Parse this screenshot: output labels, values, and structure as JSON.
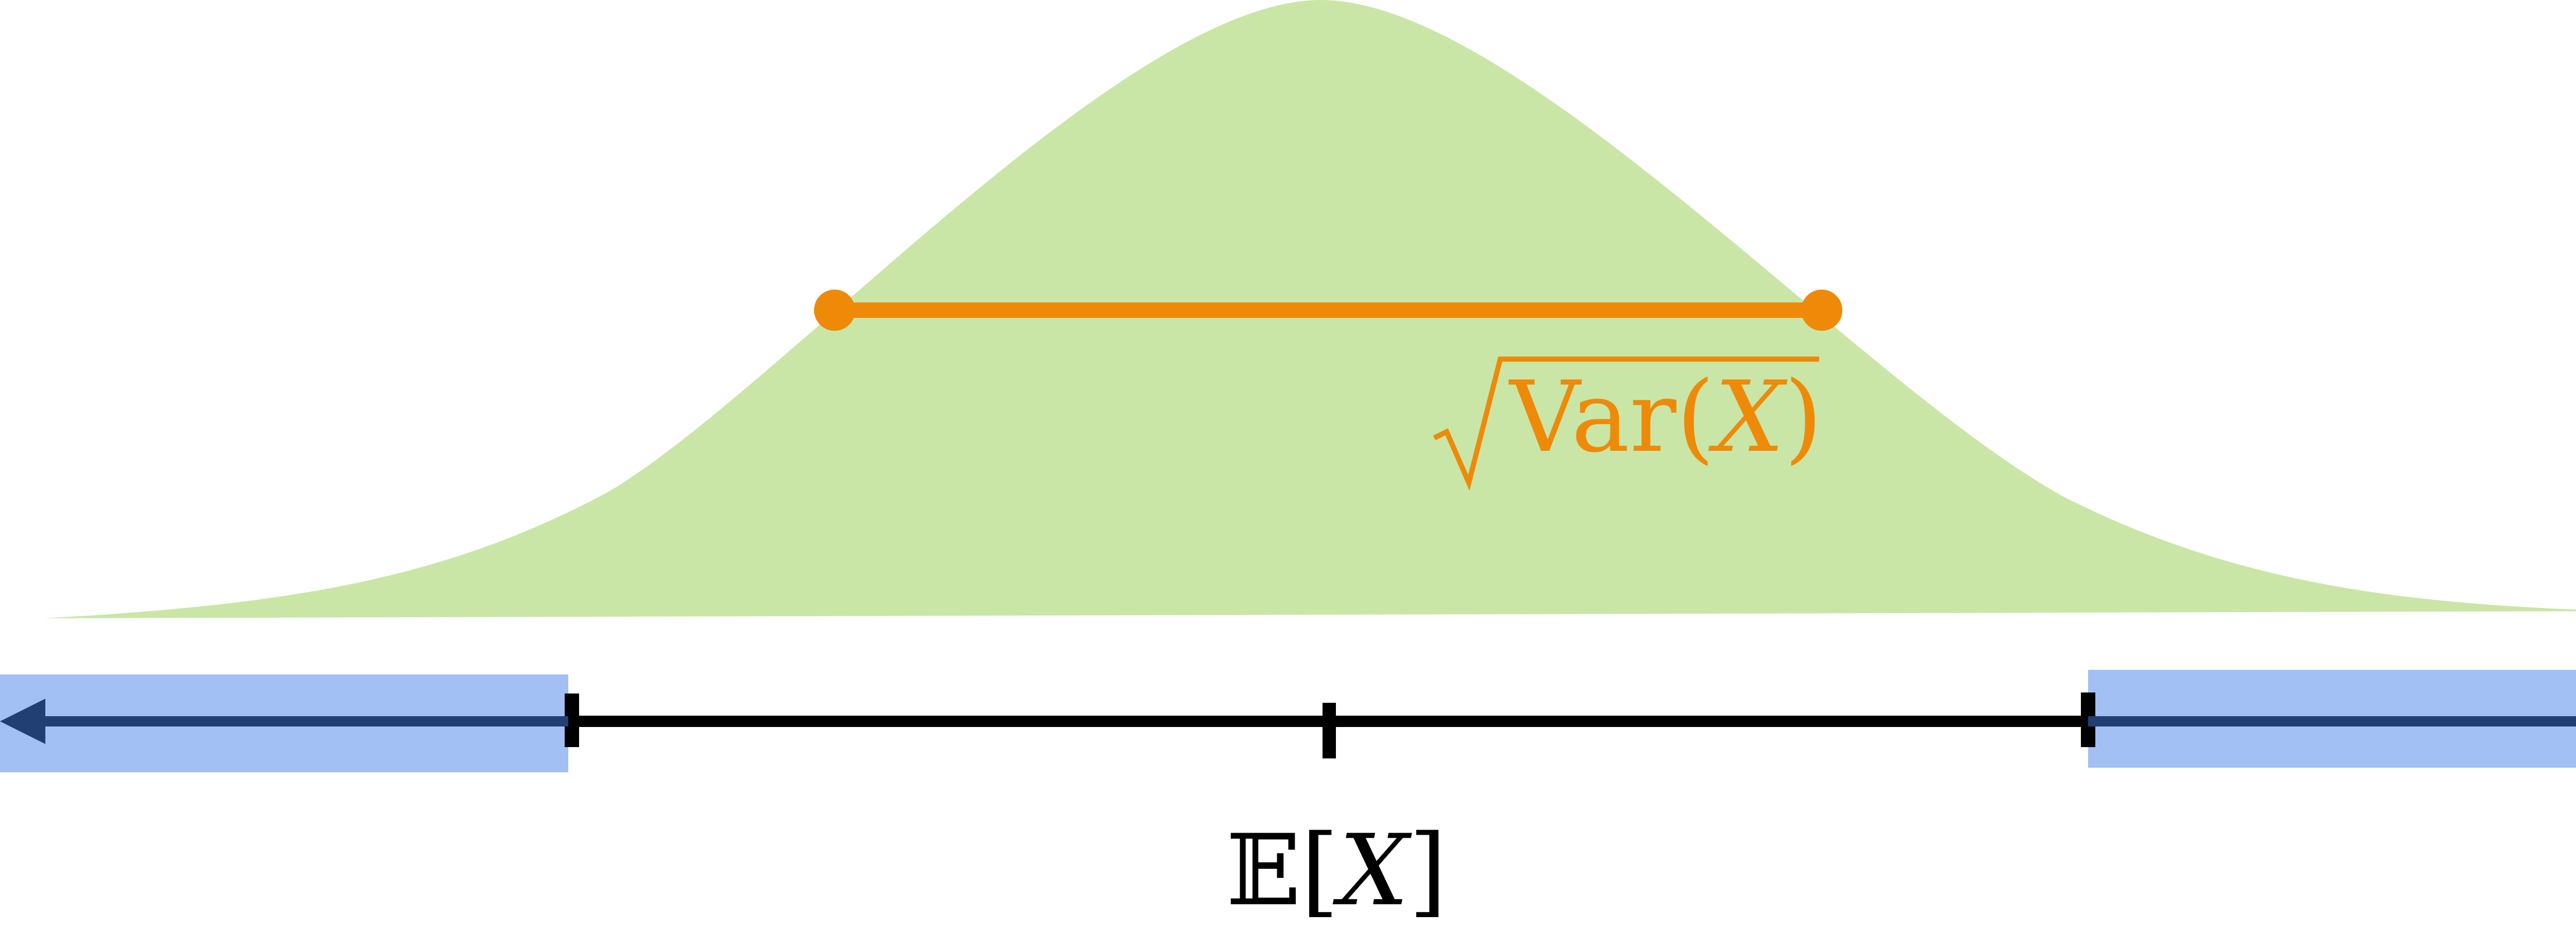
{
  "diagram": {
    "distribution_label": {
      "radical_symbol": "√",
      "function_name": "Var",
      "open_paren": "(",
      "variable": "X",
      "close_paren": ")"
    },
    "expectation_label": {
      "operator": "𝔼",
      "open_bracket": "[",
      "variable": "X",
      "close_bracket": "]"
    }
  },
  "colors": {
    "curve_fill": "#c9e6a6",
    "spread_line": "#ee8a08",
    "axis_line": "#000000",
    "tail_highlight": "#a2c0f4",
    "tail_arrow": "#213f73",
    "label_text": "#000000"
  },
  "icons": {
    "left_arrow": "arrow-left-icon",
    "right_arrow": "arrow-right-icon"
  }
}
